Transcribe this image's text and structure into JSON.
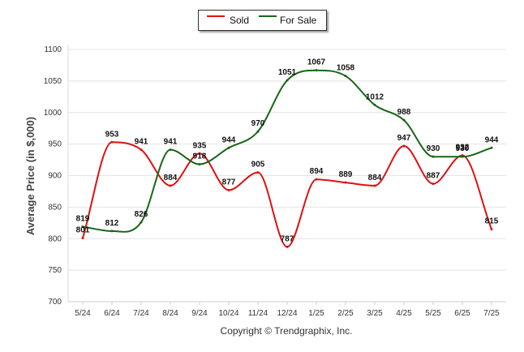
{
  "chart_data": {
    "type": "line",
    "categories": [
      "5/24",
      "6/24",
      "7/24",
      "8/24",
      "9/24",
      "10/24",
      "11/24",
      "12/24",
      "1/25",
      "2/25",
      "3/25",
      "4/25",
      "5/25",
      "6/25",
      "7/25"
    ],
    "series": [
      {
        "name": "Sold",
        "color": "#dd1111",
        "values": [
          801,
          953,
          941,
          884,
          935,
          877,
          905,
          787,
          894,
          889,
          884,
          947,
          887,
          932,
          815
        ]
      },
      {
        "name": "For Sale",
        "color": "#166616",
        "values": [
          819,
          812,
          826,
          941,
          918,
          944,
          970,
          1051,
          1067,
          1058,
          1012,
          988,
          930,
          930,
          944
        ]
      }
    ],
    "ylabel": "Average Price (in $,000)",
    "yticks": [
      700,
      750,
      800,
      850,
      900,
      950,
      1000,
      1050,
      1100
    ],
    "ylim": [
      700,
      1100
    ],
    "grid": true,
    "legend": "top-center"
  },
  "credit": "Copyright © Trendgraphix, Inc."
}
